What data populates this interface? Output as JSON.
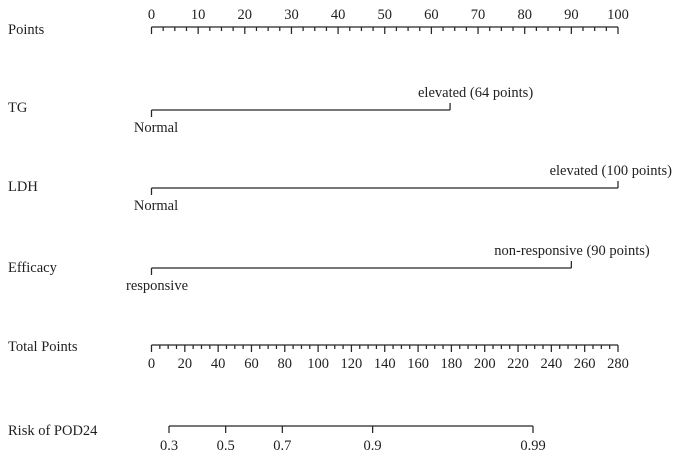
{
  "chart_data": {
    "type": "nomogram",
    "title": "",
    "colors": {
      "ink": "#262626",
      "background": "#ffffff"
    },
    "rows": [
      {
        "id": "points",
        "label": "Points",
        "kind": "axis",
        "axis": {
          "min": 0,
          "max": 100,
          "major_step": 10,
          "minor_step": 2.5,
          "tick_labels": [
            "0",
            "10",
            "20",
            "30",
            "40",
            "50",
            "60",
            "70",
            "80",
            "90",
            "100"
          ],
          "label_position": "above"
        }
      },
      {
        "id": "tg",
        "label": "TG",
        "kind": "variable",
        "categories": [
          {
            "label": "Normal",
            "points": 0,
            "label_position": "below"
          },
          {
            "label": "elevated (64 points)",
            "points": 64,
            "label_position": "above"
          }
        ]
      },
      {
        "id": "ldh",
        "label": "LDH",
        "kind": "variable",
        "categories": [
          {
            "label": "Normal",
            "points": 0,
            "label_position": "below"
          },
          {
            "label": "elevated (100 points)",
            "points": 100,
            "label_position": "above"
          }
        ]
      },
      {
        "id": "efficacy",
        "label": "Efficacy",
        "kind": "variable",
        "categories": [
          {
            "label": "responsive",
            "points": 0,
            "label_position": "below"
          },
          {
            "label": "non-responsive (90 points)",
            "points": 90,
            "label_position": "above"
          }
        ]
      },
      {
        "id": "total_points",
        "label": "Total Points",
        "kind": "axis",
        "axis": {
          "min": 0,
          "max": 280,
          "major_step": 20,
          "minor_step": 5,
          "tick_labels": [
            "0",
            "20",
            "40",
            "60",
            "80",
            "100",
            "120",
            "140",
            "160",
            "180",
            "200",
            "220",
            "240",
            "260",
            "280"
          ],
          "label_position": "below"
        }
      },
      {
        "id": "risk",
        "label": "Risk of POD24",
        "kind": "axis",
        "axis": {
          "scale": "logit",
          "ticks": [
            0.3,
            0.5,
            0.7,
            0.9,
            0.99
          ],
          "tick_labels": [
            "0.3",
            "0.5",
            "0.7",
            "0.9",
            "0.99"
          ],
          "label_position": "below"
        }
      }
    ]
  }
}
